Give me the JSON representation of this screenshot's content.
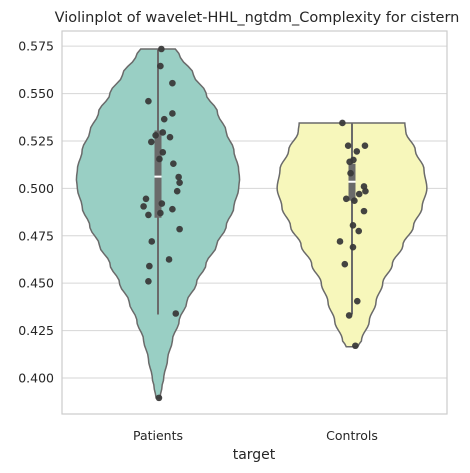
{
  "chart_data": {
    "type": "violin",
    "title": "Violinplot of wavelet-HHL_ngtdm_Complexity for cistern",
    "xlabel": "target",
    "ylabel": "",
    "categories": [
      "Patients",
      "Controls"
    ],
    "ylim": [
      0.381,
      0.583
    ],
    "yticks": [
      0.4,
      0.425,
      0.45,
      0.475,
      0.5,
      0.525,
      0.55,
      0.575
    ],
    "ytick_labels": [
      "0.400",
      "0.425",
      "0.450",
      "0.475",
      "0.500",
      "0.525",
      "0.550",
      "0.575"
    ],
    "grid": true,
    "colors": {
      "patients_fill": "#99cfc4",
      "controls_fill": "#f7f7bb",
      "outline": "#6a6a6a",
      "points": "#3a3a3a",
      "box": "#6a6a6a",
      "grid": "#d6d6d6",
      "frame": "#cccccc"
    },
    "series": [
      {
        "category": "Patients",
        "range": [
          0.3895,
          0.5735
        ],
        "quartiles": [
          0.4845,
          0.5062,
          0.5305
        ],
        "whiskers": [
          0.4335,
          0.5735
        ],
        "density_profile": [
          [
            0.3895,
            0.02
          ],
          [
            0.395,
            0.04
          ],
          [
            0.4,
            0.06
          ],
          [
            0.41,
            0.1
          ],
          [
            0.42,
            0.15
          ],
          [
            0.43,
            0.22
          ],
          [
            0.44,
            0.3
          ],
          [
            0.45,
            0.4
          ],
          [
            0.46,
            0.5
          ],
          [
            0.47,
            0.61
          ],
          [
            0.48,
            0.71
          ],
          [
            0.49,
            0.79
          ],
          [
            0.5,
            0.84
          ],
          [
            0.505,
            0.85
          ],
          [
            0.51,
            0.84
          ],
          [
            0.52,
            0.79
          ],
          [
            0.53,
            0.71
          ],
          [
            0.54,
            0.62
          ],
          [
            0.55,
            0.5
          ],
          [
            0.56,
            0.37
          ],
          [
            0.57,
            0.23
          ],
          [
            0.5735,
            0.18
          ]
        ],
        "points": [
          [
            0.07,
            0.5735
          ],
          [
            0.05,
            0.5645
          ],
          [
            0.3,
            0.5555
          ],
          [
            -0.2,
            0.546
          ],
          [
            0.3,
            0.5395
          ],
          [
            0.13,
            0.5365
          ],
          [
            0.1,
            0.5295
          ],
          [
            -0.05,
            0.528
          ],
          [
            0.25,
            0.527
          ],
          [
            -0.14,
            0.5245
          ],
          [
            0.1,
            0.519
          ],
          [
            0.03,
            0.5155
          ],
          [
            0.32,
            0.513
          ],
          [
            0.43,
            0.506
          ],
          [
            0.45,
            0.503
          ],
          [
            0.4,
            0.4985
          ],
          [
            -0.25,
            0.4945
          ],
          [
            0.08,
            0.492
          ],
          [
            -0.3,
            0.4905
          ],
          [
            0.3,
            0.489
          ],
          [
            0.05,
            0.487
          ],
          [
            -0.2,
            0.486
          ],
          [
            0.45,
            0.4785
          ],
          [
            -0.13,
            0.472
          ],
          [
            0.23,
            0.4625
          ],
          [
            -0.18,
            0.459
          ],
          [
            -0.2,
            0.451
          ],
          [
            0.37,
            0.434
          ],
          [
            0.02,
            0.3895
          ]
        ]
      },
      {
        "category": "Controls",
        "range": [
          0.4165,
          0.5345
        ],
        "quartiles": [
          0.4935,
          0.5035,
          0.513
        ],
        "whiskers": [
          0.4335,
          0.5345
        ],
        "density_profile": [
          [
            0.4165,
            0.06
          ],
          [
            0.42,
            0.1
          ],
          [
            0.43,
            0.18
          ],
          [
            0.44,
            0.25
          ],
          [
            0.45,
            0.32
          ],
          [
            0.46,
            0.42
          ],
          [
            0.47,
            0.53
          ],
          [
            0.48,
            0.64
          ],
          [
            0.49,
            0.73
          ],
          [
            0.5,
            0.78
          ],
          [
            0.51,
            0.75
          ],
          [
            0.52,
            0.66
          ],
          [
            0.53,
            0.56
          ],
          [
            0.5345,
            0.55
          ]
        ],
        "points": [
          [
            -0.2,
            0.5345
          ],
          [
            -0.08,
            0.5225
          ],
          [
            0.27,
            0.5225
          ],
          [
            0.1,
            0.5195
          ],
          [
            0.03,
            0.515
          ],
          [
            -0.05,
            0.514
          ],
          [
            -0.03,
            0.508
          ],
          [
            0.25,
            0.501
          ],
          [
            0.28,
            0.4985
          ],
          [
            0.15,
            0.497
          ],
          [
            -0.12,
            0.4945
          ],
          [
            0.05,
            0.4935
          ],
          [
            0.25,
            0.488
          ],
          [
            0.02,
            0.4805
          ],
          [
            0.14,
            0.4775
          ],
          [
            -0.25,
            0.472
          ],
          [
            0.02,
            0.469
          ],
          [
            -0.15,
            0.46
          ],
          [
            0.11,
            0.4405
          ],
          [
            -0.06,
            0.433
          ],
          [
            0.07,
            0.417
          ]
        ]
      }
    ]
  }
}
